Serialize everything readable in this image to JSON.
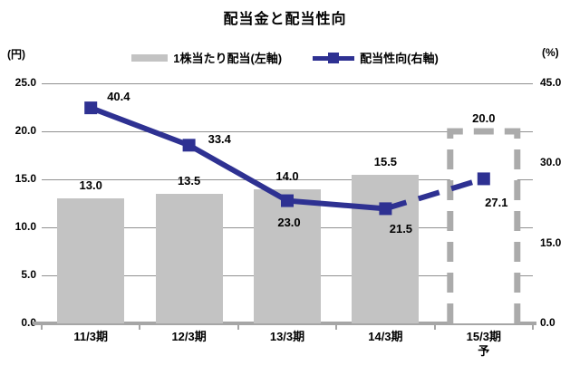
{
  "title": "配当金と配当性向",
  "legend": {
    "items": [
      {
        "label": "1株当たり配当(左軸)",
        "swatch": "bar"
      },
      {
        "label": "配当性向(右軸)",
        "swatch": "line-marker"
      }
    ]
  },
  "left_axis": {
    "unit": "(円)",
    "ticks": [
      25.0,
      20.0,
      15.0,
      10.0,
      5.0,
      0.0
    ],
    "min": 0,
    "max": 25
  },
  "right_axis": {
    "unit": "(%)",
    "ticks": [
      45.0,
      30.0,
      15.0,
      0.0
    ],
    "min": 0,
    "max": 45
  },
  "colors": {
    "bar_fill": "#C3C3C3",
    "forecast_stroke": "#ABABAB",
    "line": "#2E3192",
    "grid": "#909090",
    "axis": "#A6A6A6"
  },
  "chart_data": {
    "type": "bar",
    "categories": [
      "11/3期",
      "12/3期",
      "13/3期",
      "14/3期",
      "15/3期\n予"
    ],
    "series": [
      {
        "name": "1株当たり配当(左軸)",
        "type": "bar",
        "axis": "left",
        "values": [
          13.0,
          13.5,
          14.0,
          15.5,
          20.0
        ],
        "forecast_index": 4
      },
      {
        "name": "配当性向(右軸)",
        "type": "line",
        "axis": "right",
        "values": [
          40.4,
          33.4,
          23.0,
          21.5,
          27.1
        ],
        "dashed_from_index": 3
      }
    ],
    "title": "配当金と配当性向",
    "xlabel": "",
    "ylabel_left": "(円)",
    "ylabel_right": "(%)",
    "ylim_left": [
      0,
      25
    ],
    "ylim_right": [
      0,
      45
    ],
    "grid": true,
    "legend_position": "top"
  }
}
